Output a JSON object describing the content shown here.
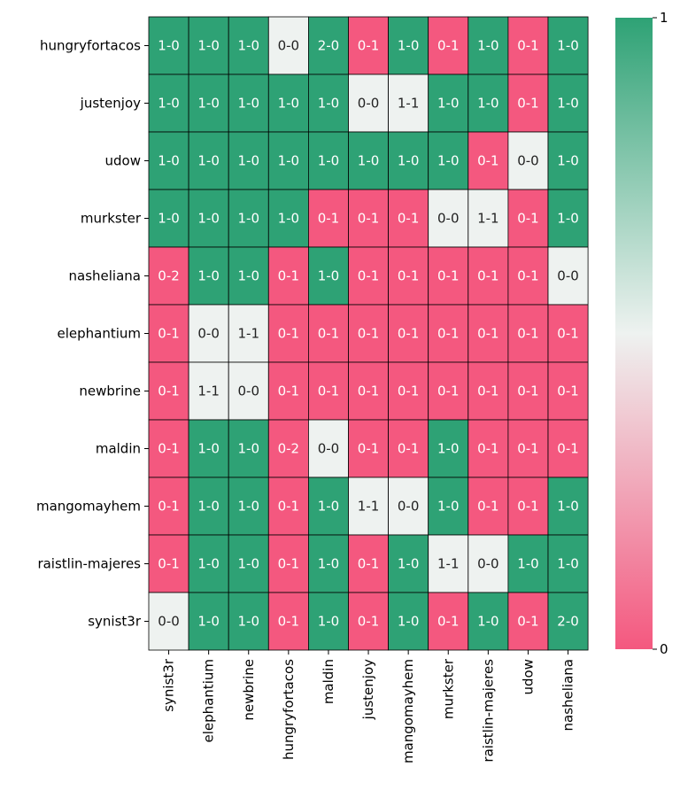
{
  "chart_data": {
    "type": "heatmap",
    "rows": [
      "hungryfortacos",
      "justenjoy",
      "udow",
      "murkster",
      "nasheliana",
      "elephantium",
      "newbrine",
      "maldin",
      "mangomayhem",
      "raistlin-majeres",
      "synist3r"
    ],
    "columns": [
      "synist3r",
      "elephantium",
      "newbrine",
      "hungryfortacos",
      "maldin",
      "justenjoy",
      "mangomayhem",
      "murkster",
      "raistlin-majeres",
      "udow",
      "nasheliana"
    ],
    "cells": [
      [
        "1-0",
        "1-0",
        "1-0",
        "0-0",
        "2-0",
        "0-1",
        "1-0",
        "0-1",
        "1-0",
        "0-1",
        "1-0"
      ],
      [
        "1-0",
        "1-0",
        "1-0",
        "1-0",
        "1-0",
        "0-0",
        "1-1",
        "1-0",
        "1-0",
        "0-1",
        "1-0"
      ],
      [
        "1-0",
        "1-0",
        "1-0",
        "1-0",
        "1-0",
        "1-0",
        "1-0",
        "1-0",
        "0-1",
        "0-0",
        "1-0"
      ],
      [
        "1-0",
        "1-0",
        "1-0",
        "1-0",
        "0-1",
        "0-1",
        "0-1",
        "0-0",
        "1-1",
        "0-1",
        "1-0"
      ],
      [
        "0-2",
        "1-0",
        "1-0",
        "0-1",
        "1-0",
        "0-1",
        "0-1",
        "0-1",
        "0-1",
        "0-1",
        "0-0"
      ],
      [
        "0-1",
        "0-0",
        "1-1",
        "0-1",
        "0-1",
        "0-1",
        "0-1",
        "0-1",
        "0-1",
        "0-1",
        "0-1"
      ],
      [
        "0-1",
        "1-1",
        "0-0",
        "0-1",
        "0-1",
        "0-1",
        "0-1",
        "0-1",
        "0-1",
        "0-1",
        "0-1"
      ],
      [
        "0-1",
        "1-0",
        "1-0",
        "0-2",
        "0-0",
        "0-1",
        "0-1",
        "1-0",
        "0-1",
        "0-1",
        "0-1"
      ],
      [
        "0-1",
        "1-0",
        "1-0",
        "0-1",
        "1-0",
        "1-1",
        "0-0",
        "1-0",
        "0-1",
        "0-1",
        "1-0"
      ],
      [
        "0-1",
        "1-0",
        "1-0",
        "0-1",
        "1-0",
        "0-1",
        "1-0",
        "1-1",
        "0-0",
        "1-0",
        "1-0"
      ],
      [
        "0-0",
        "1-0",
        "1-0",
        "0-1",
        "1-0",
        "0-1",
        "1-0",
        "0-1",
        "1-0",
        "0-1",
        "2-0"
      ]
    ],
    "values": [
      [
        1,
        1,
        1,
        0.5,
        1,
        0,
        1,
        0,
        1,
        0,
        1
      ],
      [
        1,
        1,
        1,
        1,
        1,
        0.5,
        0.5,
        1,
        1,
        0,
        1
      ],
      [
        1,
        1,
        1,
        1,
        1,
        1,
        1,
        1,
        0,
        0.5,
        1
      ],
      [
        1,
        1,
        1,
        1,
        0,
        0,
        0,
        0.5,
        0.5,
        0,
        1
      ],
      [
        0,
        1,
        1,
        0,
        1,
        0,
        0,
        0,
        0,
        0,
        0.5
      ],
      [
        0,
        0.5,
        0.5,
        0,
        0,
        0,
        0,
        0,
        0,
        0,
        0
      ],
      [
        0,
        0.5,
        0.5,
        0,
        0,
        0,
        0,
        0,
        0,
        0,
        0
      ],
      [
        0,
        1,
        1,
        0,
        0.5,
        0,
        0,
        1,
        0,
        0,
        0
      ],
      [
        0,
        1,
        1,
        0,
        1,
        0.5,
        0.5,
        1,
        0,
        0,
        1
      ],
      [
        0,
        1,
        1,
        0,
        1,
        0,
        1,
        0.5,
        0.5,
        1,
        1
      ],
      [
        0.5,
        1,
        1,
        0,
        1,
        0,
        1,
        0,
        1,
        0,
        1
      ]
    ],
    "colorbar": {
      "min": 0,
      "max": 1,
      "ticks": [
        "0",
        "1"
      ]
    },
    "colors": {
      "low": "#f4587f",
      "mid": "#eef2f0",
      "high": "#2ea275",
      "text_light": "#ffffff",
      "text_dark": "#222222"
    },
    "grid": true
  }
}
